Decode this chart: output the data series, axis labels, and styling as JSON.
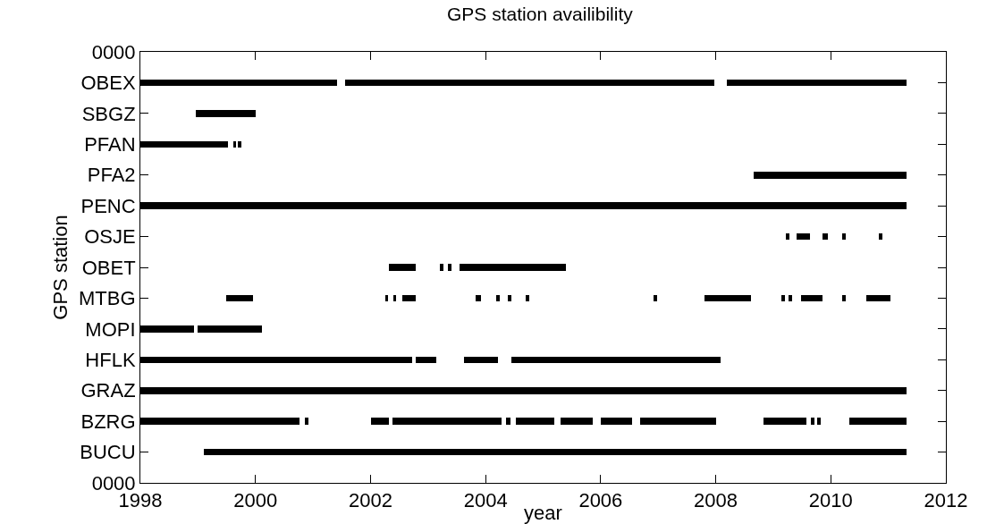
{
  "chart_data": {
    "type": "bar",
    "orientation": "horizontal",
    "title": "GPS station availibility",
    "xlabel": "year",
    "ylabel": "GPS station",
    "xlim": [
      1998,
      2012
    ],
    "xticks": [
      1998,
      2000,
      2002,
      2004,
      2006,
      2008,
      2010,
      2012
    ],
    "categories": [
      "0000",
      "OBEX",
      "SBGZ",
      "PFAN",
      "PFA2",
      "PENC",
      "OSJE",
      "OBET",
      "MTBG",
      "MOPI",
      "HFLK",
      "GRAZ",
      "BZRG",
      "BUCU",
      "0000"
    ],
    "grid": false,
    "series": [
      {
        "color": "#000000",
        "base": [
          null,
          1998.0,
          1998.96,
          1998.0,
          2008.66,
          1998.0,
          2009.22,
          2002.32,
          1999.49,
          1998.0,
          1998.0,
          1998.0,
          1998.0,
          1999.1,
          null
        ],
        "values": [
          null,
          3.42,
          1.04,
          1.52,
          2.65,
          13.31,
          0.06,
          0.47,
          0.47,
          0.93,
          4.73,
          13.31,
          2.77,
          12.21,
          null
        ]
      },
      {
        "color": "#000000",
        "base": [
          null,
          2001.56,
          null,
          1999.61,
          null,
          null,
          2009.41,
          2003.2,
          2002.25,
          1999.0,
          2002.79,
          null,
          2000.86,
          null,
          null
        ],
        "values": [
          null,
          6.42,
          null,
          0.06,
          null,
          null,
          0.23,
          0.06,
          0.06,
          1.11,
          0.36,
          null,
          0.06,
          null,
          null
        ]
      },
      {
        "color": "#000000",
        "base": [
          null,
          2008.2,
          null,
          1999.7,
          null,
          null,
          2009.85,
          2003.35,
          2002.39,
          null,
          2003.62,
          null,
          2002.01,
          null,
          null
        ],
        "values": [
          null,
          3.11,
          null,
          0.06,
          null,
          null,
          0.1,
          0.06,
          0.06,
          null,
          0.6,
          null,
          0.31,
          null,
          null
        ]
      },
      {
        "color": "#000000",
        "base": [
          null,
          null,
          null,
          null,
          null,
          null,
          2010.2,
          2003.54,
          2002.56,
          null,
          2004.45,
          null,
          2002.38,
          null,
          null
        ],
        "values": [
          null,
          null,
          null,
          null,
          null,
          null,
          0.06,
          1.85,
          0.23,
          null,
          3.64,
          null,
          1.89,
          null,
          null
        ]
      },
      {
        "color": "#000000",
        "base": [
          null,
          null,
          null,
          null,
          null,
          null,
          2010.84,
          null,
          2003.83,
          null,
          null,
          null,
          2004.35,
          null,
          null
        ],
        "values": [
          null,
          null,
          null,
          null,
          null,
          null,
          0.06,
          null,
          0.09,
          null,
          null,
          null,
          0.09,
          null,
          null
        ]
      },
      {
        "color": "#000000",
        "base": [
          null,
          null,
          null,
          null,
          null,
          null,
          null,
          null,
          2004.19,
          null,
          null,
          null,
          2004.52,
          null,
          null
        ],
        "values": [
          null,
          null,
          null,
          null,
          null,
          null,
          null,
          null,
          0.06,
          null,
          null,
          null,
          0.68,
          null,
          null
        ]
      },
      {
        "color": "#000000",
        "base": [
          null,
          null,
          null,
          null,
          null,
          null,
          null,
          null,
          2004.39,
          null,
          null,
          null,
          2005.3,
          null,
          null
        ],
        "values": [
          null,
          null,
          null,
          null,
          null,
          null,
          null,
          null,
          0.06,
          null,
          null,
          null,
          0.56,
          null,
          null
        ]
      },
      {
        "color": "#000000",
        "base": [
          null,
          null,
          null,
          null,
          null,
          null,
          null,
          null,
          2004.7,
          null,
          null,
          null,
          2006.0,
          null,
          null
        ],
        "values": [
          null,
          null,
          null,
          null,
          null,
          null,
          null,
          null,
          0.06,
          null,
          null,
          null,
          0.54,
          null,
          null
        ]
      },
      {
        "color": "#000000",
        "base": [
          null,
          null,
          null,
          null,
          null,
          null,
          null,
          null,
          2006.92,
          null,
          null,
          null,
          2006.68,
          null,
          null
        ],
        "values": [
          null,
          null,
          null,
          null,
          null,
          null,
          null,
          null,
          0.06,
          null,
          null,
          null,
          1.33,
          null,
          null
        ]
      },
      {
        "color": "#000000",
        "base": [
          null,
          null,
          null,
          null,
          null,
          null,
          null,
          null,
          2007.8,
          null,
          null,
          null,
          2008.83,
          null,
          null
        ],
        "values": [
          null,
          null,
          null,
          null,
          null,
          null,
          null,
          null,
          0.81,
          null,
          null,
          null,
          0.74,
          null,
          null
        ]
      },
      {
        "color": "#000000",
        "base": [
          null,
          null,
          null,
          null,
          null,
          null,
          null,
          null,
          2009.14,
          null,
          null,
          null,
          2009.66,
          null,
          null
        ],
        "values": [
          null,
          null,
          null,
          null,
          null,
          null,
          null,
          null,
          0.06,
          null,
          null,
          null,
          0.06,
          null,
          null
        ]
      },
      {
        "color": "#000000",
        "base": [
          null,
          null,
          null,
          null,
          null,
          null,
          null,
          null,
          2009.27,
          null,
          null,
          null,
          2009.77,
          null,
          null
        ],
        "values": [
          null,
          null,
          null,
          null,
          null,
          null,
          null,
          null,
          0.06,
          null,
          null,
          null,
          0.06,
          null,
          null
        ]
      },
      {
        "color": "#000000",
        "base": [
          null,
          null,
          null,
          null,
          null,
          null,
          null,
          null,
          2009.48,
          null,
          null,
          null,
          2010.32,
          null,
          null
        ],
        "values": [
          null,
          null,
          null,
          null,
          null,
          null,
          null,
          null,
          0.37,
          null,
          null,
          null,
          0.99,
          null,
          null
        ]
      },
      {
        "color": "#000000",
        "base": [
          null,
          null,
          null,
          null,
          null,
          null,
          null,
          null,
          2010.2,
          null,
          null,
          null,
          null,
          null,
          null
        ],
        "values": [
          null,
          null,
          null,
          null,
          null,
          null,
          null,
          null,
          0.06,
          null,
          null,
          null,
          null,
          null,
          null
        ]
      },
      {
        "color": "#000000",
        "base": [
          null,
          null,
          null,
          null,
          null,
          null,
          null,
          null,
          2010.61,
          null,
          null,
          null,
          null,
          null,
          null
        ],
        "values": [
          null,
          null,
          null,
          null,
          null,
          null,
          null,
          null,
          0.42,
          null,
          null,
          null,
          null,
          null,
          null
        ]
      }
    ]
  }
}
